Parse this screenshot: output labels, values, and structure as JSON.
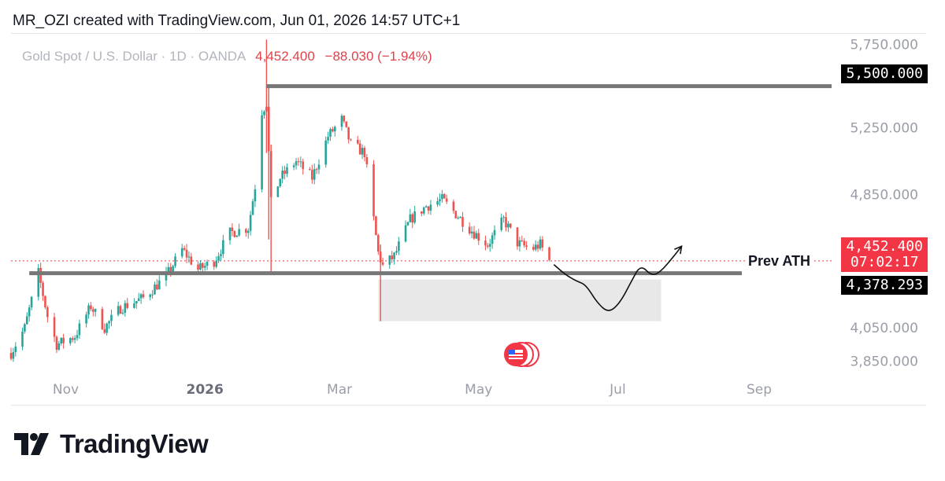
{
  "header": {
    "text": "MR_OZI created with TradingView.com, Jun 01, 2026 14:57 UTC+1"
  },
  "symbol": {
    "label": "Gold Spot / U.S. Dollar · 1D · OANDA",
    "price": "4,452.400",
    "change": "−88.030 (−1.94%)"
  },
  "brand": {
    "logo": "tradingview-logo",
    "name": "TradingView"
  },
  "tags": {
    "resistance": "5,500.000",
    "last_price": "4,452.400",
    "countdown": "07:02:17",
    "support": "4,378.293"
  },
  "annotations": {
    "prev_ath": "Prev ATH"
  },
  "colors": {
    "up": "#26a69a",
    "down": "#ef5350",
    "level_line": "#777777",
    "zone": "#e8e8e8",
    "axis_text": "#9a9ea8"
  },
  "chart_data": {
    "type": "candlestick",
    "ylabel": "",
    "ylim": [
      3820,
      5800
    ],
    "y_ticks": [
      "5,750.000",
      "5,250.000",
      "4,850.000",
      "4,050.000",
      "3,850.000"
    ],
    "x_ticks": [
      {
        "label": "Nov",
        "date": "2025-11-01",
        "bold": false
      },
      {
        "label": "2026",
        "date": "2026-01-01",
        "bold": true
      },
      {
        "label": "Mar",
        "date": "2026-03-01",
        "bold": false
      },
      {
        "label": "May",
        "date": "2026-05-01",
        "bold": false
      },
      {
        "label": "Jul",
        "date": "2026-07-01",
        "bold": false
      },
      {
        "label": "Sep",
        "date": "2026-09-01",
        "bold": false
      }
    ],
    "x_range": [
      "2025-10-08",
      "2026-09-30"
    ],
    "levels": [
      {
        "name": "resistance",
        "value": 5500
      },
      {
        "name": "prev-ath",
        "value": 4378.293
      }
    ],
    "zone": {
      "start": "2026-03-18",
      "end": "2026-07-20",
      "high": 4340,
      "low": 4090
    },
    "last_price": 4452.4,
    "anchors": [
      [
        "2025-10-08",
        3900
      ],
      [
        "2025-10-14",
        4050
      ],
      [
        "2025-10-20",
        4380
      ],
      [
        "2025-10-24",
        4120
      ],
      [
        "2025-10-28",
        3950
      ],
      [
        "2025-11-05",
        4000
      ],
      [
        "2025-11-12",
        4180
      ],
      [
        "2025-11-18",
        4050
      ],
      [
        "2025-11-25",
        4170
      ],
      [
        "2025-12-05",
        4230
      ],
      [
        "2025-12-15",
        4360
      ],
      [
        "2025-12-22",
        4520
      ],
      [
        "2025-12-29",
        4400
      ],
      [
        "2026-01-05",
        4450
      ],
      [
        "2026-01-12",
        4620
      ],
      [
        "2026-01-20",
        4650
      ],
      [
        "2026-01-23",
        4900
      ],
      [
        "2026-01-26",
        5350
      ],
      [
        "2026-01-28",
        5400
      ],
      [
        "2026-01-30",
        4800
      ],
      [
        "2026-02-03",
        4950
      ],
      [
        "2026-02-10",
        5050
      ],
      [
        "2026-02-17",
        4950
      ],
      [
        "2026-02-24",
        5200
      ],
      [
        "2026-03-02",
        5300
      ],
      [
        "2026-03-06",
        5150
      ],
      [
        "2026-03-12",
        5100
      ],
      [
        "2026-03-18",
        4500
      ],
      [
        "2026-03-20",
        4420
      ],
      [
        "2026-03-25",
        4480
      ],
      [
        "2026-04-01",
        4700
      ],
      [
        "2026-04-08",
        4780
      ],
      [
        "2026-04-15",
        4820
      ],
      [
        "2026-04-22",
        4720
      ],
      [
        "2026-04-29",
        4620
      ],
      [
        "2026-05-05",
        4550
      ],
      [
        "2026-05-12",
        4700
      ],
      [
        "2026-05-18",
        4560
      ],
      [
        "2026-05-24",
        4520
      ],
      [
        "2026-05-28",
        4550
      ],
      [
        "2026-06-01",
        4452
      ]
    ],
    "projection": [
      [
        "2026-06-03",
        4430
      ],
      [
        "2026-06-08",
        4370
      ],
      [
        "2026-06-13",
        4330
      ],
      [
        "2026-06-17",
        4310
      ],
      [
        "2026-06-22",
        4200
      ],
      [
        "2026-06-27",
        4140
      ],
      [
        "2026-07-02",
        4200
      ],
      [
        "2026-07-07",
        4330
      ],
      [
        "2026-07-11",
        4430
      ],
      [
        "2026-07-16",
        4360
      ],
      [
        "2026-07-20",
        4390
      ],
      [
        "2026-07-25",
        4470
      ],
      [
        "2026-07-29",
        4540
      ]
    ]
  }
}
